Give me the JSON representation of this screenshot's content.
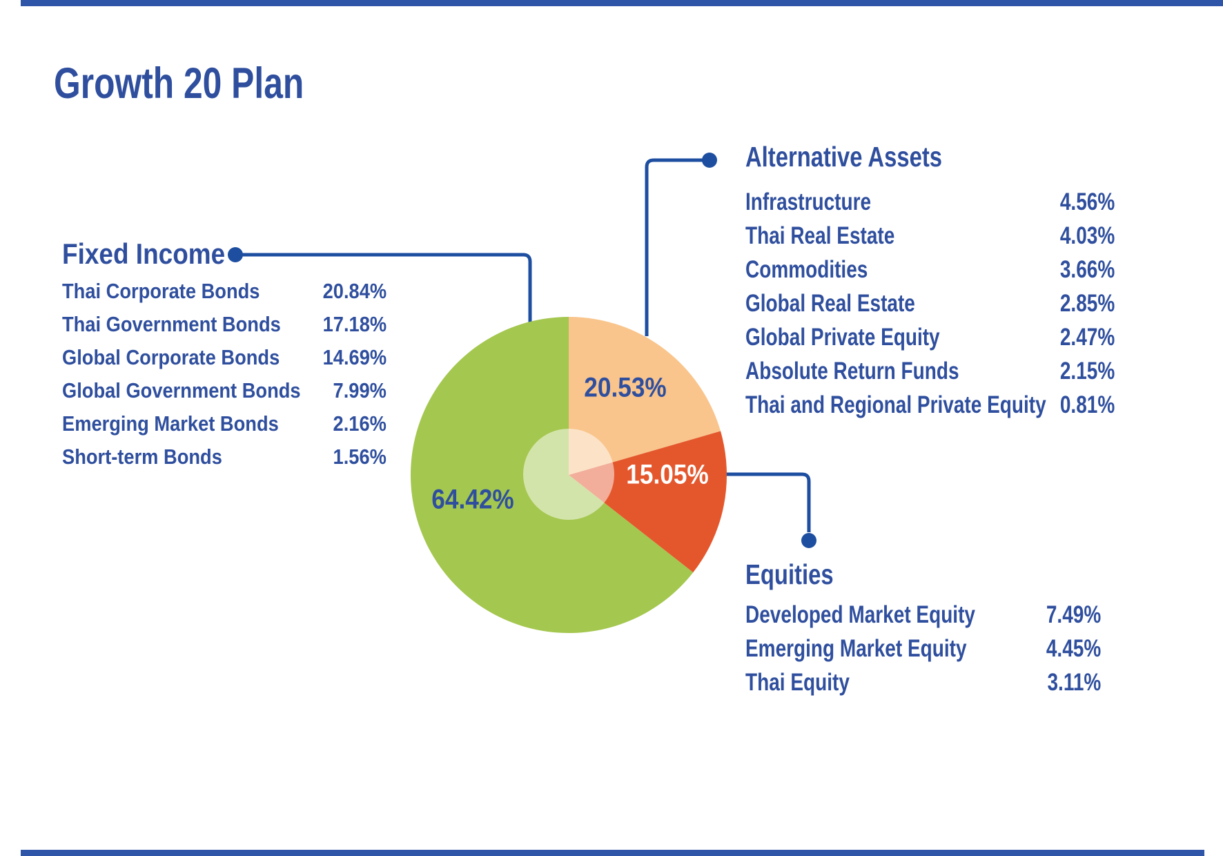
{
  "page": {
    "title": "Growth 20 Plan"
  },
  "colors": {
    "text_blue": "#2F4F9E",
    "connector_blue": "#1D4EA0",
    "rule_blue": "#2E55A8",
    "slice_green": "#A4C74F",
    "slice_peach": "#F9C58C",
    "slice_orange": "#E4572D"
  },
  "chart_data": {
    "type": "pie",
    "title": "Growth 20 Plan",
    "start_angle_deg": 0,
    "direction": "clockwise",
    "legend_position": "sides",
    "slices": [
      {
        "name": "Alternative Assets",
        "value": 20.53,
        "display": "20.53%",
        "color": "#F9C58C",
        "label_color": "#2F4F9E"
      },
      {
        "name": "Equities",
        "value": 15.05,
        "display": "15.05%",
        "color": "#E4572D",
        "label_color": "#FFFFFF"
      },
      {
        "name": "Fixed Income",
        "value": 64.42,
        "display": "64.42%",
        "color": "#A4C74F",
        "label_color": "#2F4F9E"
      }
    ],
    "inner_overlay": {
      "radius_fraction": 0.29,
      "fill": "rgba(255,255,255,0.52)"
    }
  },
  "groups": [
    {
      "title": "Fixed Income",
      "total_display": "64.42%",
      "items": [
        {
          "label": "Thai Corporate Bonds",
          "value": "20.84%"
        },
        {
          "label": "Thai Government Bonds",
          "value": "17.18%"
        },
        {
          "label": "Global Corporate Bonds",
          "value": "14.69%"
        },
        {
          "label": "Global Government Bonds",
          "value": "7.99%"
        },
        {
          "label": "Emerging Market Bonds",
          "value": "2.16%"
        },
        {
          "label": "Short-term Bonds",
          "value": "1.56%"
        }
      ]
    },
    {
      "title": "Alternative Assets",
      "total_display": "20.53%",
      "items": [
        {
          "label": "Infrastructure",
          "value": "4.56%"
        },
        {
          "label": "Thai Real Estate",
          "value": "4.03%"
        },
        {
          "label": "Commodities",
          "value": "3.66%"
        },
        {
          "label": "Global Real Estate",
          "value": "2.85%"
        },
        {
          "label": "Global Private Equity",
          "value": "2.47%"
        },
        {
          "label": "Absolute Return Funds",
          "value": "2.15%"
        },
        {
          "label": "Thai and Regional Private Equity",
          "value": "0.81%"
        }
      ]
    },
    {
      "title": "Equities",
      "total_display": "15.05%",
      "items": [
        {
          "label": "Developed Market Equity",
          "value": "7.49%"
        },
        {
          "label": "Emerging Market Equity",
          "value": "4.45%"
        },
        {
          "label": "Thai Equity",
          "value": "3.11%"
        }
      ]
    }
  ]
}
